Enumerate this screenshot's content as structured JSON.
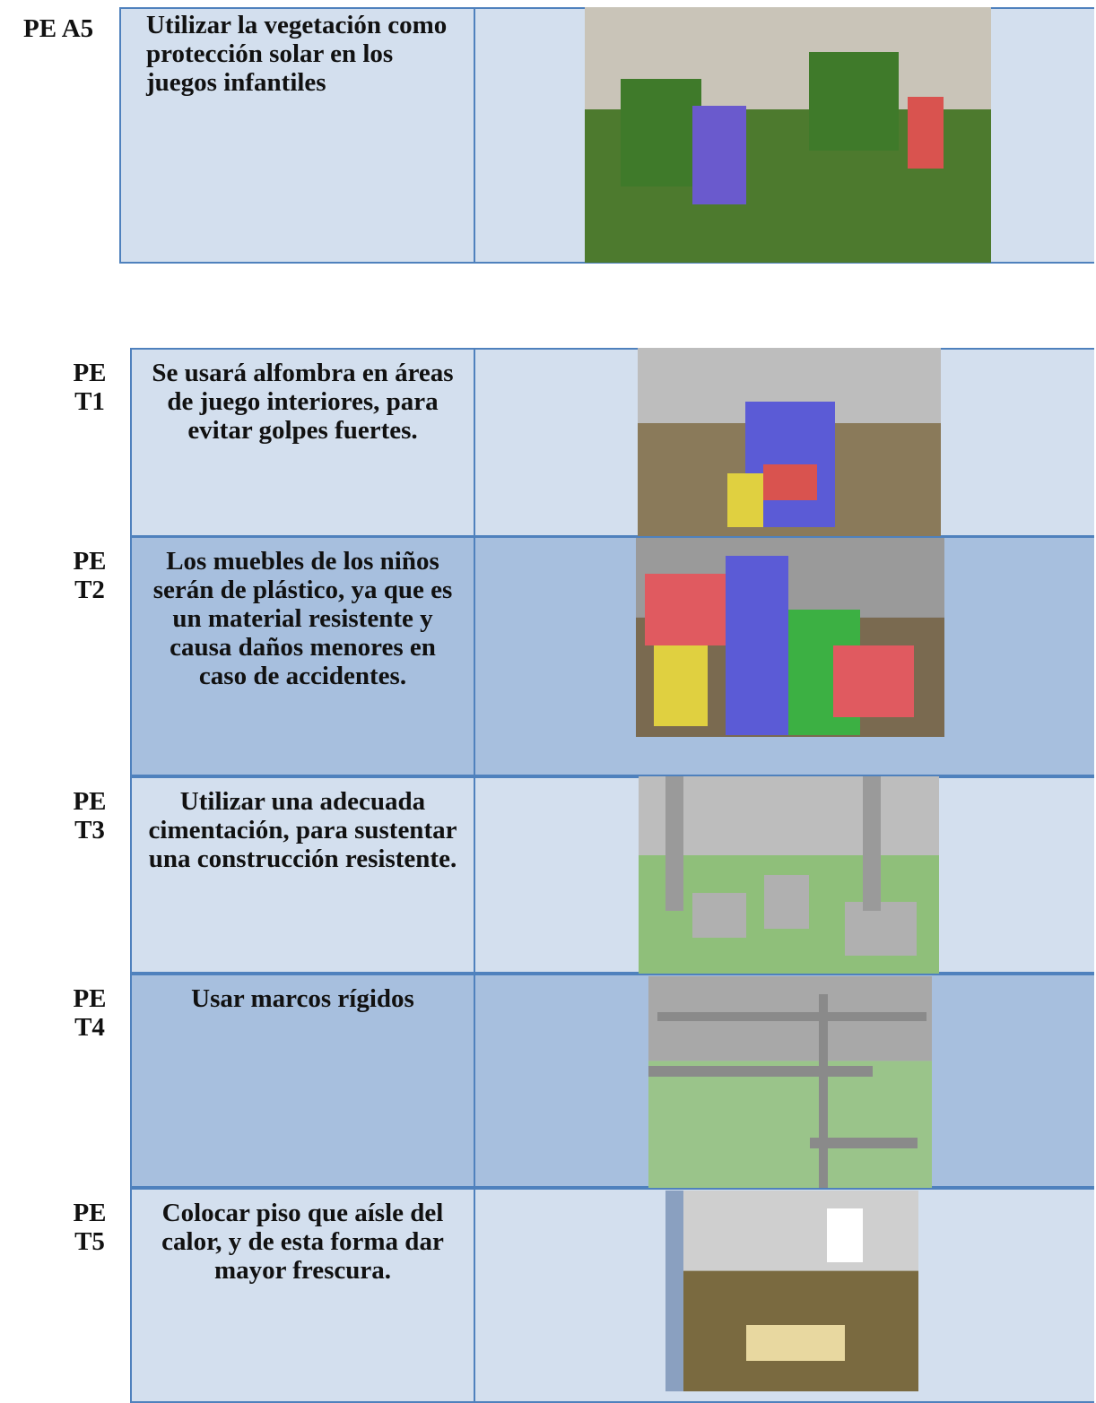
{
  "rows": [
    {
      "code": "PE A5",
      "text": "Utilizar la vegetación como protección solar en los juegos infantiles"
    },
    {
      "code": "PE T1",
      "text": "Se usará alfombra en áreas de juego interiores, para evitar golpes fuertes."
    },
    {
      "code": "PE T2",
      "text": "Los muebles de los niños serán de plástico, ya que es un material resistente y causa daños menores en caso de accidentes."
    },
    {
      "code": "PE T3",
      "text": "Utilizar una adecuada cimentación, para sustentar una construcción resistente."
    },
    {
      "code": "PE T4",
      "text": "Usar marcos rígidos"
    },
    {
      "code": "PE T5",
      "text": "Colocar piso que aísle del calor, y de esta forma dar mayor frescura."
    }
  ]
}
